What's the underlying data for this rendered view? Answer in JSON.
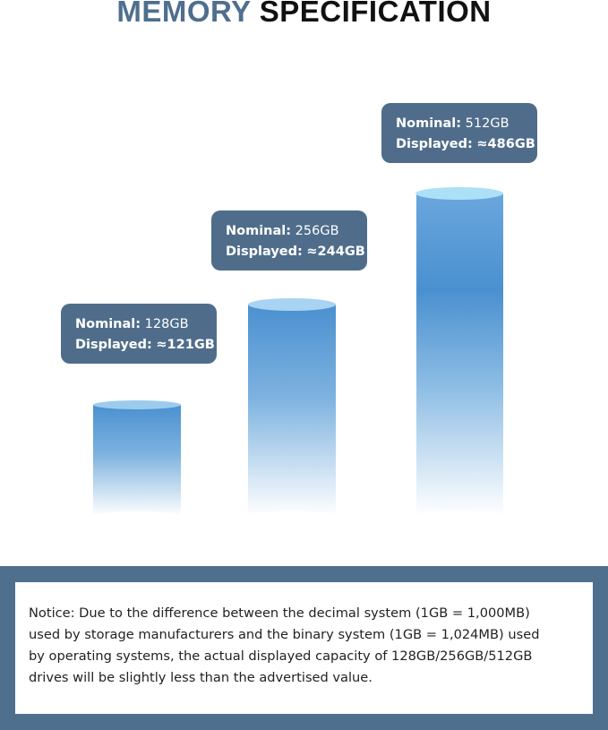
{
  "title": {
    "part1": "MEMORY",
    "part2": "SPECIFICATION"
  },
  "items": [
    {
      "nominal_label": "Nominal:",
      "nominal": "128GB",
      "displayed_label": "Displayed:",
      "displayed": "≈121GB"
    },
    {
      "nominal_label": "Nominal:",
      "nominal": "256GB",
      "displayed_label": "Displayed:",
      "displayed": "≈244GB"
    },
    {
      "nominal_label": "Nominal:",
      "nominal": "512GB",
      "displayed_label": "Displayed:",
      "displayed": "≈486GB"
    }
  ],
  "notice": {
    "lines": [
      "Notice: Due to the difference between the decimal system (1GB = 1,000MB)",
      "used by storage manufacturers and the binary system (1GB = 1,024MB) used",
      "by operating systems, the actual displayed capacity of 128GB/256GB/512GB",
      "drives will be slightly less than the advertised value."
    ]
  }
}
